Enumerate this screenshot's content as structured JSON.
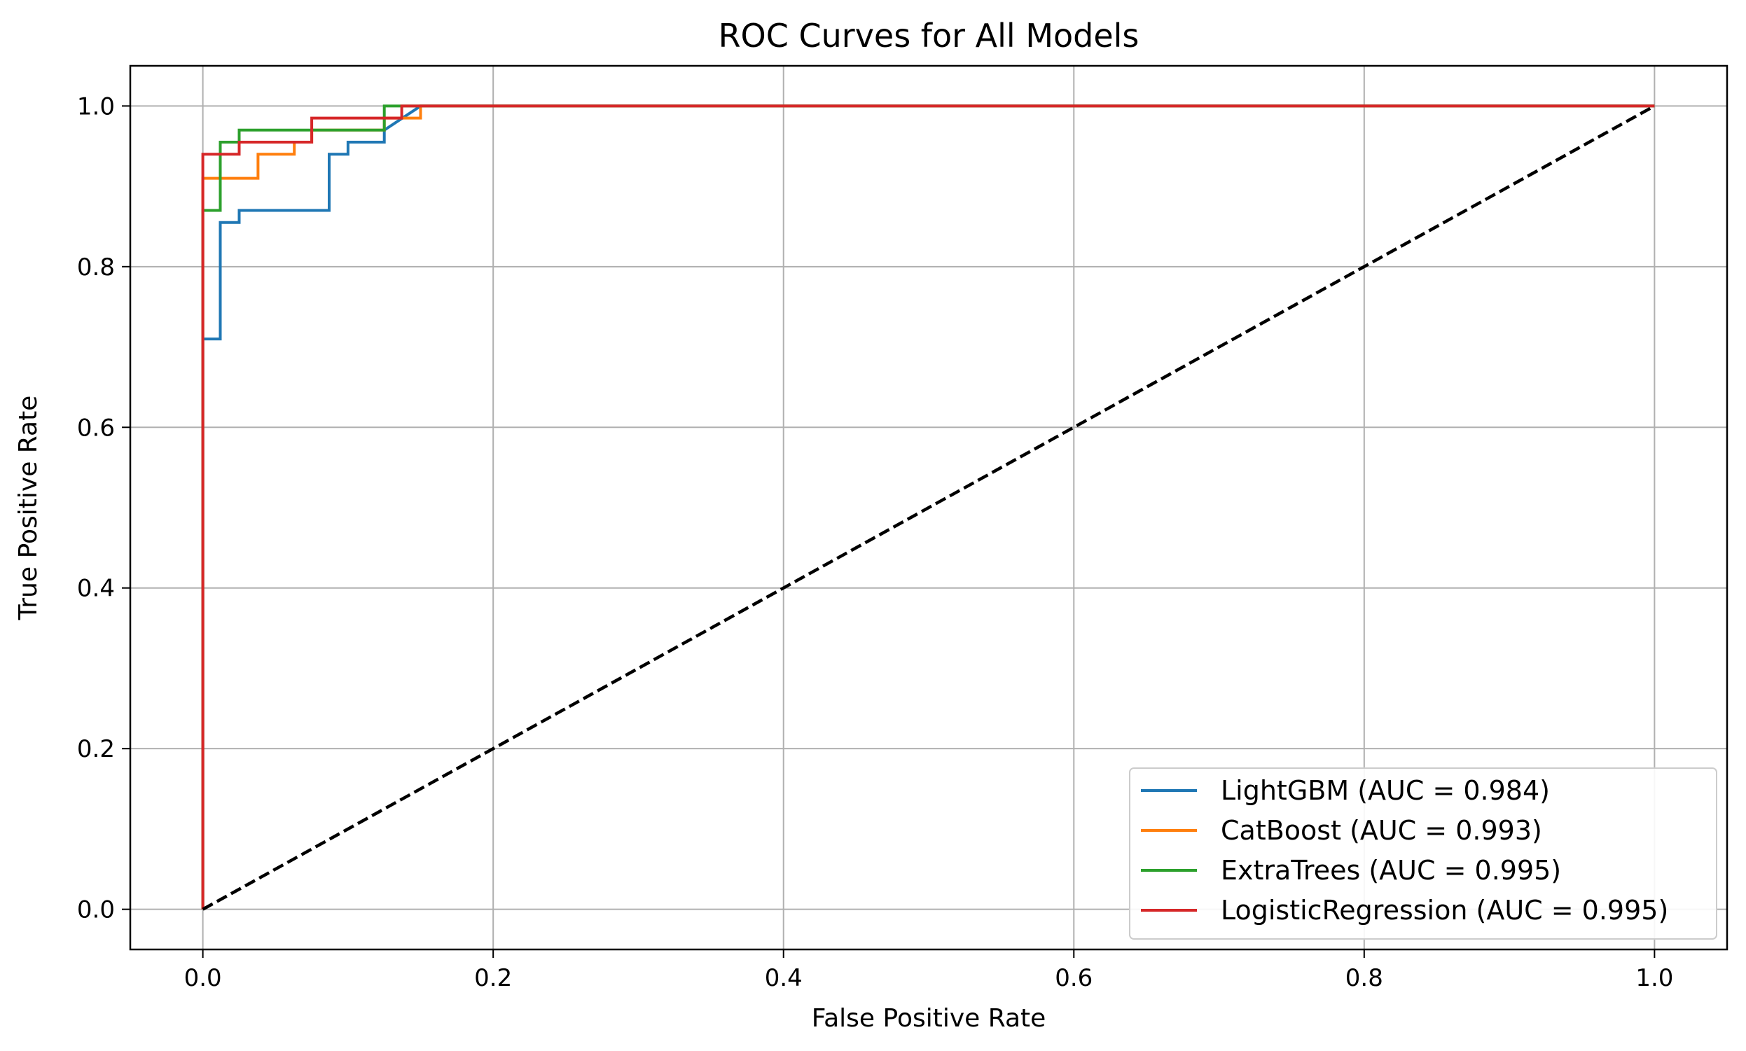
{
  "chart_data": {
    "type": "line",
    "title": "ROC Curves for All Models",
    "xlabel": "False Positive Rate",
    "ylabel": "True Positive Rate",
    "xlim": [
      -0.05,
      1.05
    ],
    "ylim": [
      -0.05,
      1.05
    ],
    "xticks": [
      0.0,
      0.2,
      0.4,
      0.6,
      0.8,
      1.0
    ],
    "xtick_labels": [
      "0.0",
      "0.2",
      "0.4",
      "0.6",
      "0.8",
      "1.0"
    ],
    "yticks": [
      0.0,
      0.2,
      0.4,
      0.6,
      0.8,
      1.0
    ],
    "ytick_labels": [
      "0.0",
      "0.2",
      "0.4",
      "0.6",
      "0.8",
      "1.0"
    ],
    "grid": true,
    "legend_position": "lower-right",
    "series": [
      {
        "name": "LightGBM (AUC = 0.984)",
        "color": "#1f77b4",
        "step": true,
        "x": [
          0.0,
          0.0,
          0.012,
          0.012,
          0.025,
          0.025,
          0.087,
          0.087,
          0.1,
          0.1,
          0.125,
          0.125,
          0.15,
          1.0
        ],
        "y": [
          0.0,
          0.71,
          0.71,
          0.855,
          0.855,
          0.87,
          0.87,
          0.94,
          0.94,
          0.955,
          0.955,
          0.97,
          1.0,
          1.0
        ]
      },
      {
        "name": "CatBoost (AUC = 0.993)",
        "color": "#ff7f0e",
        "step": true,
        "x": [
          0.0,
          0.0,
          0.038,
          0.038,
          0.063,
          0.063,
          0.075,
          0.075,
          0.125,
          0.125,
          0.15,
          0.15,
          1.0
        ],
        "y": [
          0.0,
          0.91,
          0.91,
          0.94,
          0.94,
          0.955,
          0.955,
          0.97,
          0.97,
          0.985,
          0.985,
          1.0,
          1.0
        ]
      },
      {
        "name": "ExtraTrees (AUC = 0.995)",
        "color": "#2ca02c",
        "step": true,
        "x": [
          0.0,
          0.0,
          0.012,
          0.012,
          0.025,
          0.025,
          0.125,
          0.125,
          1.0
        ],
        "y": [
          0.0,
          0.87,
          0.87,
          0.955,
          0.955,
          0.97,
          0.97,
          1.0,
          1.0
        ]
      },
      {
        "name": "LogisticRegression (AUC = 0.995)",
        "color": "#d62728",
        "step": true,
        "x": [
          0.0,
          0.0,
          0.012,
          0.012,
          0.025,
          0.025,
          0.075,
          0.075,
          0.137,
          0.137,
          1.0
        ],
        "y": [
          0.0,
          0.94,
          0.94,
          0.94,
          0.94,
          0.955,
          0.955,
          0.985,
          0.985,
          1.0,
          1.0
        ]
      }
    ],
    "reference_line": {
      "name": "chance",
      "color": "#000000",
      "style": "dashed",
      "x": [
        0.0,
        1.0
      ],
      "y": [
        0.0,
        1.0
      ]
    }
  }
}
